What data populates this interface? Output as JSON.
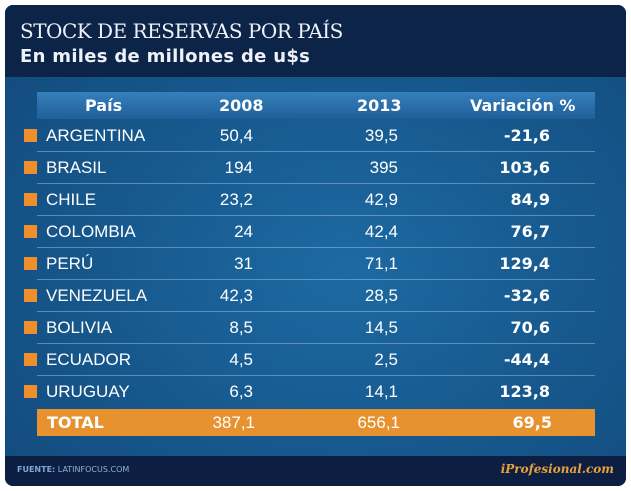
{
  "header": {
    "title": "STOCK DE RESERVAS POR PAÍS",
    "subtitle": "En miles de millones de u$s"
  },
  "chart_data": {
    "type": "table",
    "title": "STOCK DE RESERVAS POR PAÍS",
    "subtitle": "En miles de millones de u$s",
    "columns": [
      "País",
      "2008",
      "2013",
      "Variación %"
    ],
    "rows": [
      {
        "country": "ARGENTINA",
        "y2008": "50,4",
        "y2013": "39,5",
        "variation": "-21,6"
      },
      {
        "country": "BRASIL",
        "y2008": "194",
        "y2013": "395",
        "variation": "103,6"
      },
      {
        "country": "CHILE",
        "y2008": "23,2",
        "y2013": "42,9",
        "variation": "84,9"
      },
      {
        "country": "COLOMBIA",
        "y2008": "24",
        "y2013": "42,4",
        "variation": "76,7"
      },
      {
        "country": "PERÚ",
        "y2008": "31",
        "y2013": "71,1",
        "variation": "129,4"
      },
      {
        "country": "VENEZUELA",
        "y2008": "42,3",
        "y2013": "28,5",
        "variation": "-32,6"
      },
      {
        "country": "BOLIVIA",
        "y2008": "8,5",
        "y2013": "14,5",
        "variation": "70,6"
      },
      {
        "country": "ECUADOR",
        "y2008": "4,5",
        "y2013": "2,5",
        "variation": "-44,4"
      },
      {
        "country": "URUGUAY",
        "y2008": "6,3",
        "y2013": "14,1",
        "variation": "123,8"
      }
    ],
    "total": {
      "label": "TOTAL",
      "y2008": "387,1",
      "y2013": "656,1",
      "variation": "69,5"
    }
  },
  "footer": {
    "source_label": "FUENTE:",
    "source": "LATINFOCUS.COM",
    "logo": "iProfesional.com"
  },
  "colors": {
    "header": "#0c2447",
    "body": "#175a8f",
    "accent": "#e8922f",
    "marker": "#ee8f2c"
  }
}
